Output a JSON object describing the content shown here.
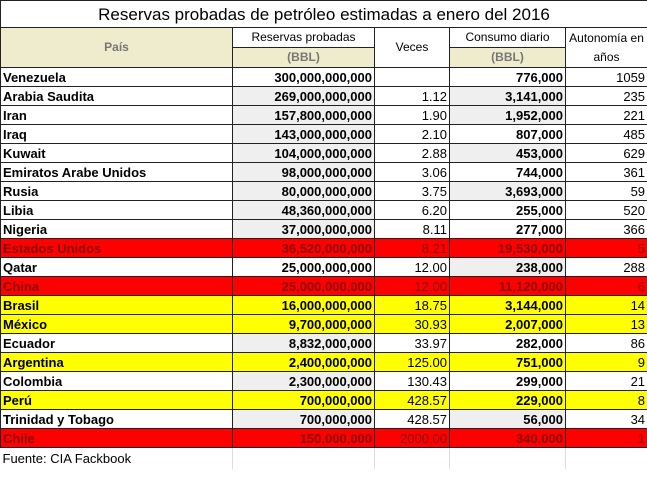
{
  "title": "Reservas probadas de petróleo estimadas a enero del 2016",
  "headers": {
    "pais": "País",
    "reservas": "Reservas probadas",
    "reservas_unit": "(BBL)",
    "veces": "Veces",
    "consumo": "Consumo diario",
    "consumo_unit": "(BBL)",
    "autonomia": "Autonomía en años"
  },
  "highlight_colors": {
    "red": "#ff0000",
    "yellow": "#ffff00",
    "gray": "#efefef"
  },
  "rows": [
    {
      "pais": "Venezuela",
      "reservas": "300,000,000,000",
      "veces": "",
      "consumo": "776,000",
      "autonomia": "1059",
      "hl": "",
      "gr": false,
      "gc": false
    },
    {
      "pais": "Arabia Saudita",
      "reservas": "269,000,000,000",
      "veces": "1.12",
      "consumo": "3,141,000",
      "autonomia": "235",
      "hl": "",
      "gr": true,
      "gc": true
    },
    {
      "pais": "Iran",
      "reservas": "157,800,000,000",
      "veces": "1.90",
      "consumo": "1,952,000",
      "autonomia": "221",
      "hl": "",
      "gr": true,
      "gc": true
    },
    {
      "pais": "Iraq",
      "reservas": "143,000,000,000",
      "veces": "2.10",
      "consumo": "807,000",
      "autonomia": "485",
      "hl": "",
      "gr": true,
      "gc": false
    },
    {
      "pais": "Kuwait",
      "reservas": "104,000,000,000",
      "veces": "2.88",
      "consumo": "453,000",
      "autonomia": "629",
      "hl": "",
      "gr": true,
      "gc": true
    },
    {
      "pais": "Emiratos Arabe Unidos",
      "reservas": "98,000,000,000",
      "veces": "3.06",
      "consumo": "744,000",
      "autonomia": "361",
      "hl": "",
      "gr": true,
      "gc": false
    },
    {
      "pais": "Rusia",
      "reservas": "80,000,000,000",
      "veces": "3.75",
      "consumo": "3,693,000",
      "autonomia": "59",
      "hl": "",
      "gr": true,
      "gc": true
    },
    {
      "pais": "Libia",
      "reservas": "48,360,000,000",
      "veces": "6.20",
      "consumo": "255,000",
      "autonomia": "520",
      "hl": "",
      "gr": true,
      "gc": false
    },
    {
      "pais": "Nigeria",
      "reservas": "37,000,000,000",
      "veces": "8.11",
      "consumo": "277,000",
      "autonomia": "366",
      "hl": "",
      "gr": true,
      "gc": false
    },
    {
      "pais": "Estados Unidos",
      "reservas": "36,520,000,000",
      "veces": "8.21",
      "consumo": "19,530,000",
      "autonomia": "5",
      "hl": "red",
      "gr": false,
      "gc": false
    },
    {
      "pais": "Qatar",
      "reservas": "25,000,000,000",
      "veces": "12.00",
      "consumo": "238,000",
      "autonomia": "288",
      "hl": "",
      "gr": false,
      "gc": true
    },
    {
      "pais": "China",
      "reservas": "25,000,000,000",
      "veces": "12.00",
      "consumo": "11,120,000",
      "autonomia": "6",
      "hl": "red",
      "gr": false,
      "gc": false
    },
    {
      "pais": "Brasil",
      "reservas": "16,000,000,000",
      "veces": "18.75",
      "consumo": "3,144,000",
      "autonomia": "14",
      "hl": "yel",
      "gr": false,
      "gc": false
    },
    {
      "pais": "México",
      "reservas": "9,700,000,000",
      "veces": "30.93",
      "consumo": "2,007,000",
      "autonomia": "13",
      "hl": "yel",
      "gr": false,
      "gc": false
    },
    {
      "pais": "Ecuador",
      "reservas": "8,832,000,000",
      "veces": "33.97",
      "consumo": "282,000",
      "autonomia": "86",
      "hl": "",
      "gr": true,
      "gc": false
    },
    {
      "pais": "Argentina",
      "reservas": "2,400,000,000",
      "veces": "125.00",
      "consumo": "751,000",
      "autonomia": "9",
      "hl": "yel",
      "gr": false,
      "gc": false
    },
    {
      "pais": "Colombia",
      "reservas": "2,300,000,000",
      "veces": "130.43",
      "consumo": "299,000",
      "autonomia": "21",
      "hl": "",
      "gr": true,
      "gc": false
    },
    {
      "pais": "Perú",
      "reservas": "700,000,000",
      "veces": "428.57",
      "consumo": "229,000",
      "autonomia": "8",
      "hl": "yel",
      "gr": false,
      "gc": false
    },
    {
      "pais": "Trinidad y Tobago",
      "reservas": "700,000,000",
      "veces": "428.57",
      "consumo": "56,000",
      "autonomia": "34",
      "hl": "",
      "gr": true,
      "gc": true
    },
    {
      "pais": "Chile",
      "reservas": "150,000,000",
      "veces": "2000.00",
      "consumo": "340,000",
      "autonomia": "1",
      "hl": "red",
      "gr": false,
      "gc": false
    }
  ],
  "footer": "Fuente: CIA Fackbook"
}
